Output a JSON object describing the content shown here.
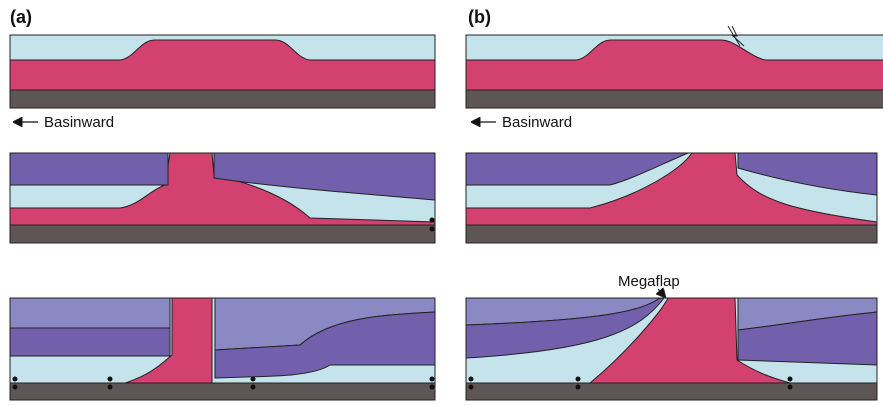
{
  "panels": [
    {
      "label": "(a)",
      "direction": "Basinward"
    },
    {
      "label": "(b)",
      "direction": "Basinward",
      "annotation": "Megaflap"
    }
  ]
}
